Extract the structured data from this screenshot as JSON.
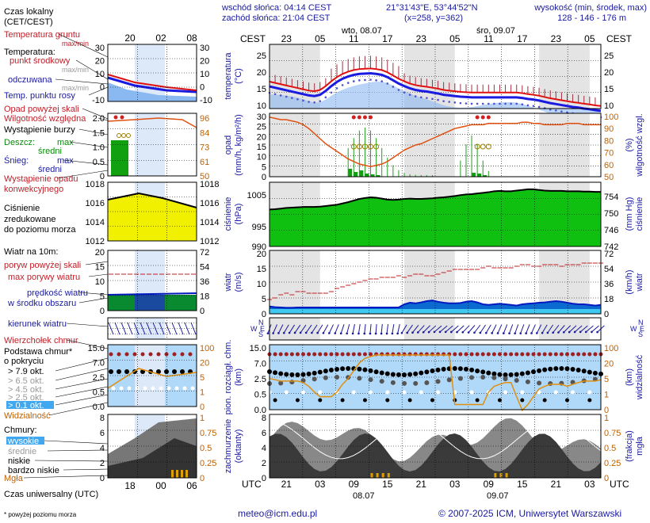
{
  "header": {
    "sunrise": "wschód słońca: 04:14 CEST",
    "sunset": "zachód słońca: 21:04 CEST",
    "coords": "21°31'43\"E, 53°44'52\"N",
    "grid": "(x=258, y=362)",
    "elevation_title": "wysokość (min, środek, max)",
    "elevation_values": "128 - 146 - 176 m"
  },
  "footer": {
    "email": "meteo@icm.edu.pl",
    "copyright": "© 2007-2025 ICM, Uniwersytet Warszawski",
    "note": "* powyżej poziomu morza",
    "utc_legend": "Czas uniwersalny (UTC)"
  },
  "legend": {
    "local_time": "Czas lokalny",
    "local_time2": "(CET/CEST)",
    "ground_temp": "Temperatura gruntu",
    "maxmin": "max/min",
    "temp": "Temperatura:",
    "mid_point": "punkt środkowy",
    "maxmin2": "max/min",
    "felt": "odczuwana",
    "maxmin3": "max/min",
    "dew": "Temp. punktu rosy",
    "precip_above": "Opad powyżej skali",
    "humidity": "Wilgotność względna",
    "storm": "Wystąpienie burzy",
    "rain": "Deszcz:",
    "rain_max": "max",
    "rain_mid": "średni",
    "snow": "Śnieg:",
    "snow_max": "max",
    "snow_mid": "średni",
    "precip_occ1": "Wystąpienie opadu",
    "precip_occ2": "konwekcyjnego",
    "pressure1": "Ciśnienie",
    "pressure2": "zredukowane",
    "pressure3": "do poziomu morza",
    "wind10": "Wiatr na 10m:",
    "gust_above": "poryw powyżej skali",
    "gust_max": "max porywy wiatru",
    "wind_speed1": "prędkość wiatru",
    "wind_speed2": "w środku obszaru",
    "wind_dir": "kierunek wiatru",
    "cloud_top": "Wierzchołek chmur",
    "cloud_base1": "Podstawa chmur*",
    "cloud_base2": "o pokryciu",
    "okt79": "> 7.9 okt.",
    "okt65": "> 6.5 okt.",
    "okt45": "> 4.5 okt.",
    "okt25": "> 2.5 okt.",
    "okt01": "> 0.1 okt.",
    "visibility": "Widzialność",
    "clouds": "Chmury:",
    "high": "wysokie",
    "mid": "średnie",
    "low": "niskie",
    "vlow": "bardzo niskie",
    "fog": "Mgła"
  },
  "axes": {
    "cest": "CEST",
    "utc": "UTC",
    "local_ticks_top": [
      "23",
      "05",
      "11",
      "17",
      "23",
      "05",
      "11",
      "17",
      "23",
      "05"
    ],
    "utc_ticks_bottom": [
      "21",
      "03",
      "09",
      "15",
      "21",
      "03",
      "09",
      "15",
      "21",
      "03"
    ],
    "legend_local_ticks": [
      "20",
      "02",
      "08"
    ],
    "legend_utc_ticks": [
      "18",
      "00",
      "06"
    ],
    "day1_top": "wto, 08.07",
    "day2_top": "śro, 09.07",
    "day1_bottom": "08.07",
    "day2_bottom": "09.07",
    "temp_label1": "temperatura",
    "temp_label2": "(°C)",
    "precip_label1": "opad",
    "precip_label2": "(mm/h, kg/m²/h)",
    "hum_label1": "(%)",
    "hum_label2": "wilgotność wzgl.",
    "press_label1": "ciśnienie",
    "press_label2": "(hPa)",
    "press_label3": "(mm Hg)",
    "press_label4": "ciśnienie",
    "wind_label1": "wiatr",
    "wind_label2": "(m/s)",
    "wind_label3": "(km/h)",
    "wind_label4": "wiatr",
    "cloud_label1": "pion. rozciągł. chm.",
    "cloud_label2": "(km)",
    "vis_label1": "(km)",
    "vis_label2": "widzialność",
    "cov_label1": "zachmurzenie",
    "cov_label2": "(oktanty)",
    "fog_label1": "(frakcja)",
    "fog_label2": "mgła",
    "compass": [
      "N",
      "W",
      "E",
      "S"
    ],
    "temp_ticks": [
      "25",
      "20",
      "15",
      "10"
    ],
    "precip_ticks": [
      "30",
      "25",
      "20",
      "15",
      "10",
      "5",
      "0"
    ],
    "hum_ticks": [
      "100",
      "90",
      "80",
      "70",
      "60",
      "50"
    ],
    "press_ticks": [
      "1005",
      "995",
      "990"
    ],
    "mmhg_ticks": [
      "754",
      "750",
      "746",
      "742"
    ],
    "wind_ticks": [
      "20",
      "15",
      "10",
      "5",
      "0"
    ],
    "kmh_ticks": [
      "72",
      "54",
      "36",
      "18",
      "0"
    ],
    "cloud_ticks": [
      "15.0",
      "7.0",
      "2.5",
      "0.5",
      "0.0"
    ],
    "vis_ticks": [
      "100",
      "20",
      "5",
      "1",
      "0"
    ],
    "cov_ticks": [
      "8",
      "6",
      "4",
      "2",
      "0"
    ],
    "fog_ticks": [
      "1",
      "0.75",
      "0.5",
      "0.25",
      "0"
    ],
    "leg_temp_ticks": [
      "30",
      "20",
      "10",
      "0",
      "-10"
    ],
    "leg_precip_ticks": [
      "2.0",
      "1.5",
      "1.0",
      "0.5",
      "0"
    ],
    "leg_hum_ticks": [
      "96",
      "84",
      "73",
      "61",
      "50"
    ],
    "leg_press_ticks": [
      "1018",
      "1016",
      "1014",
      "1012"
    ],
    "leg_wind_ticks": [
      "20",
      "15",
      "10",
      "5",
      "0"
    ],
    "leg_kmh_ticks": [
      "72",
      "54",
      "36",
      "18",
      "0"
    ],
    "leg_cloud_ticks": [
      "15.0",
      "7.0",
      "2.5",
      "0.5",
      "0.0"
    ],
    "leg_vis_ticks": [
      "100",
      "20",
      "5",
      "1",
      "0"
    ],
    "leg_cov_ticks": [
      "8",
      "6",
      "4",
      "2",
      "0"
    ],
    "leg_fog_ticks": [
      "1",
      "0.75",
      "0.5",
      "0.25",
      "0"
    ]
  },
  "chart_data": {
    "type": "line",
    "hours_utc": [
      18,
      19,
      20,
      21,
      22,
      23,
      0,
      1,
      2,
      3,
      4,
      5,
      6,
      7,
      8,
      9,
      10,
      11,
      12,
      13,
      14,
      15,
      16,
      17,
      18,
      19,
      20,
      21,
      22,
      23,
      0,
      1,
      2,
      3,
      4,
      5,
      6,
      7,
      8,
      9,
      10,
      11,
      12,
      13,
      14,
      15,
      16,
      17,
      18,
      19,
      20,
      21,
      22,
      23,
      0,
      1,
      2,
      3,
      4,
      5
    ],
    "temperature_c": [
      18.4,
      18.0,
      17.6,
      17.2,
      16.8,
      16.4,
      16.0,
      15.6,
      15.4,
      15.8,
      17.0,
      18.5,
      19.8,
      20.8,
      21.5,
      22.0,
      22.3,
      22.4,
      22.5,
      22.3,
      22.0,
      21.3,
      20.3,
      19.3,
      18.5,
      17.8,
      17.3,
      17.0,
      16.8,
      16.5,
      16.2,
      15.8,
      15.6,
      15.4,
      15.2,
      15.1,
      15.0,
      15.0,
      15.0,
      15.0,
      15.0,
      15.0,
      15.0,
      15.0,
      15.0,
      14.8,
      14.5,
      14.3,
      14.0,
      13.6,
      13.2,
      12.9,
      12.6,
      12.3,
      12.0,
      11.8,
      11.5,
      11.3,
      11.0,
      10.8
    ],
    "humidity_pct": [
      97,
      96,
      95,
      95,
      94,
      93,
      91,
      88,
      84,
      80,
      76,
      73,
      70,
      67,
      64,
      62,
      60,
      59,
      58,
      59,
      60,
      62,
      65,
      68,
      71,
      73,
      75,
      76,
      78,
      80,
      82,
      84,
      86,
      88,
      89,
      90,
      91,
      91,
      91,
      92,
      92,
      92,
      92,
      92,
      92,
      93,
      93,
      92,
      92,
      91,
      91,
      91,
      91,
      92,
      92,
      92,
      91,
      91,
      91,
      91
    ],
    "pressure_hpa": [
      1001.5,
      1001.6,
      1001.8,
      1002.0,
      1002.1,
      1002.2,
      1002.3,
      1002.3,
      1002.3,
      1002.4,
      1002.6,
      1002.8,
      1003.0,
      1003.4,
      1003.8,
      1004.3,
      1004.8,
      1005.1,
      1005.3,
      1005.2,
      1004.9,
      1004.6,
      1004.5,
      1004.6,
      1004.8,
      1004.9,
      1004.8,
      1004.8,
      1004.9,
      1005.0,
      1005.2,
      1005.3,
      1005.5,
      1005.7,
      1006.0,
      1006.2,
      1006.3,
      1006.5,
      1006.7,
      1006.9,
      1007.2,
      1007.3,
      1007.2,
      1007.2,
      1007.4,
      1007.6,
      1007.8,
      1007.8,
      1007.6,
      1007.4,
      1007.3,
      1007.3,
      1007.3,
      1007.2,
      1007.2,
      1007.2,
      1007.1,
      1007.1,
      1007.0,
      1007.0
    ],
    "wind_speed_ms": [
      2.3,
      2.1,
      2.0,
      1.9,
      1.9,
      2.0,
      2.0,
      2.0,
      2.0,
      2.0,
      2.0,
      2.0,
      2.0,
      2.0,
      2.0,
      2.0,
      2.0,
      2.0,
      2.0,
      2.0,
      2.0,
      2.0,
      2.0,
      2.0,
      3.0,
      3.5,
      3.3,
      3.6,
      4.0,
      4.2,
      3.8,
      3.5,
      3.3,
      3.3,
      3.4,
      3.8,
      4.0,
      3.6,
      3.0,
      2.8,
      3.0,
      3.2,
      3.0,
      2.8,
      2.6,
      3.0,
      3.2,
      3.3,
      3.5,
      3.6,
      3.8,
      4.0,
      3.8,
      3.5,
      3.2,
      3.0,
      3.0,
      2.8,
      2.6,
      2.8
    ],
    "wind_gust_ms": [
      4.5,
      5.0,
      6.0,
      6.5,
      6.0,
      7.0,
      7.0,
      6.5,
      6.5,
      6.5,
      6.5,
      7.0,
      8.0,
      8.5,
      9.0,
      9.5,
      10.0,
      10.5,
      11.0,
      11.0,
      11.5,
      11.5,
      11.5,
      12.0,
      11.5,
      12.0,
      12.5,
      12.5,
      12.0,
      12.0,
      12.5,
      13.0,
      13.5,
      14.0,
      14.0,
      14.0,
      14.0,
      14.0,
      14.5,
      15.0,
      14.5,
      14.5,
      14.5,
      14.5,
      15.0,
      15.5,
      15.5,
      15.0,
      15.0,
      15.5,
      15.5,
      15.5,
      15.0,
      15.5,
      15.5,
      15.5,
      16.0,
      16.0,
      16.0,
      16.0
    ],
    "visibility_km": [
      5,
      4.5,
      4,
      4,
      4,
      4,
      3.5,
      2.5,
      1.5,
      1,
      1,
      1,
      1.5,
      3,
      5,
      10,
      20,
      30,
      35,
      40,
      40,
      40,
      40,
      40,
      40,
      40,
      40,
      40,
      40,
      40,
      40,
      40,
      40,
      0.5,
      0.5,
      0.5,
      0.5,
      0.5,
      0.5,
      1.5,
      2.5,
      3,
      3.5,
      3.5,
      1,
      0.3,
      0.5,
      1,
      2,
      2.5,
      3,
      3,
      3,
      2.5,
      3,
      3.5,
      4,
      4,
      4,
      4.5
    ]
  }
}
